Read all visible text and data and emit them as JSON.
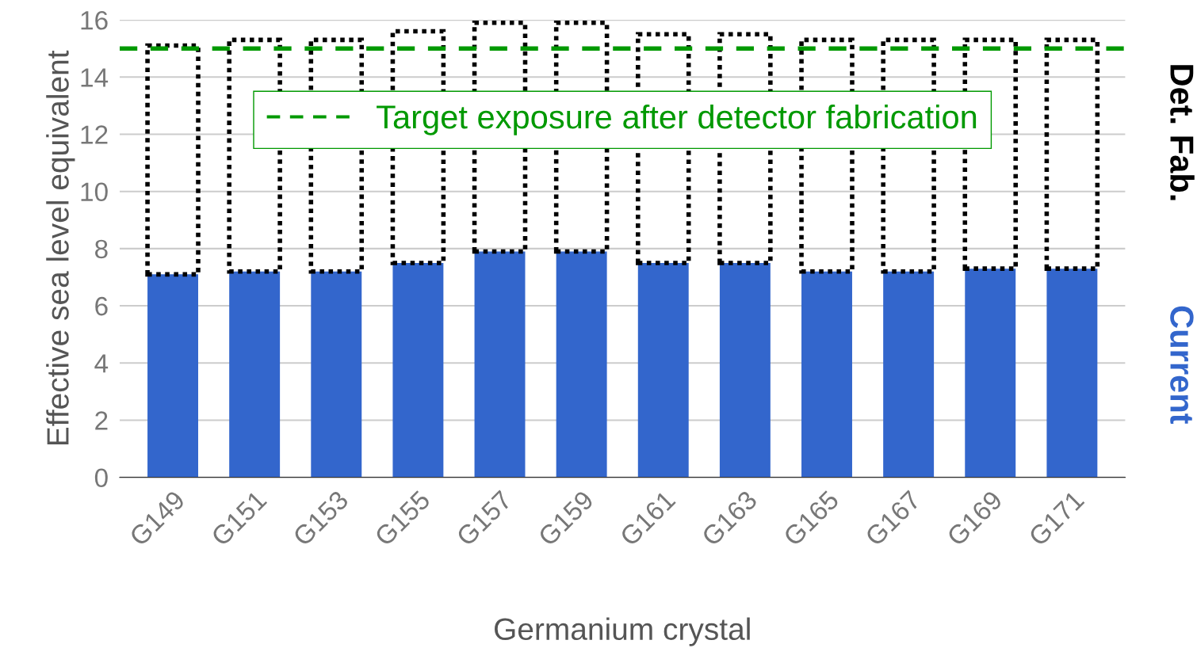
{
  "chart_data": {
    "type": "bar",
    "stacked": true,
    "xlabel": "Germanium crystal",
    "ylabel": "Effective sea level equivalent",
    "categories": [
      "G149",
      "G151",
      "G153",
      "G155",
      "G157",
      "G159",
      "G161",
      "G163",
      "G165",
      "G167",
      "G169",
      "G171"
    ],
    "series": [
      {
        "name": "Current",
        "color": "#3366cc",
        "values": [
          7.1,
          7.2,
          7.2,
          7.5,
          7.9,
          7.9,
          7.5,
          7.5,
          7.2,
          7.2,
          7.3,
          7.3
        ]
      },
      {
        "name": "Det. Fab.",
        "color": "#000000",
        "line_style": "dotted",
        "values": [
          8.0,
          8.1,
          8.1,
          8.1,
          8.0,
          8.0,
          8.0,
          8.0,
          8.1,
          8.1,
          8.0,
          8.0
        ]
      }
    ],
    "ylim": [
      0,
      16
    ],
    "yticks": [
      0,
      2,
      4,
      6,
      8,
      10,
      12,
      14,
      16
    ],
    "grid": "y",
    "legend": "top",
    "ref_lines": [
      {
        "axis": "y",
        "value": 15,
        "label": "Target exposure after detector fabrication",
        "color": "#009900",
        "line_style": "dashed"
      }
    ]
  }
}
